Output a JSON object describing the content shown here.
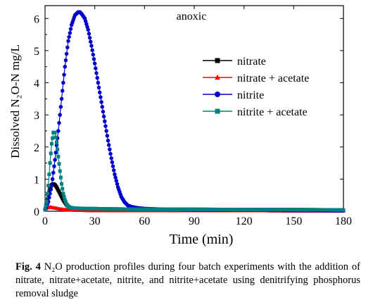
{
  "chart_data": {
    "type": "scatter",
    "annotation": "anoxic",
    "xlabel": "Time (min)",
    "ylabel": "Dissolved N₂O-N mg/L",
    "xlim": [
      0,
      180
    ],
    "ylim": [
      0,
      6.4
    ],
    "xticks": [
      0,
      30,
      60,
      90,
      120,
      150,
      180
    ],
    "yticks": [
      0,
      1,
      2,
      3,
      4,
      5,
      6
    ],
    "legend_position": "right",
    "series": [
      {
        "name": "nitrate",
        "color": "#000000",
        "marker": "square",
        "x": [
          0,
          1,
          2,
          3,
          4,
          5,
          6,
          7,
          8,
          9,
          10,
          11,
          12,
          13,
          14,
          15,
          17,
          20,
          25,
          30,
          40,
          60,
          90,
          120,
          150,
          180
        ],
        "y": [
          0.05,
          0.25,
          0.5,
          0.72,
          0.82,
          0.85,
          0.82,
          0.75,
          0.65,
          0.55,
          0.45,
          0.35,
          0.27,
          0.2,
          0.15,
          0.11,
          0.08,
          0.06,
          0.05,
          0.05,
          0.05,
          0.05,
          0.04,
          0.04,
          0.03,
          0.03
        ]
      },
      {
        "name": "nitrate + acetate",
        "color": "#ff0000",
        "marker": "triangle",
        "x": [
          0,
          1,
          2,
          3,
          4,
          5,
          6,
          8,
          10,
          12,
          15,
          20,
          30,
          60,
          90,
          120,
          150,
          180
        ],
        "y": [
          0.05,
          0.1,
          0.12,
          0.13,
          0.12,
          0.11,
          0.1,
          0.08,
          0.06,
          0.05,
          0.04,
          0.03,
          0.02,
          0.02,
          0.02,
          0.02,
          0.01,
          0.01
        ]
      },
      {
        "name": "nitrite",
        "color": "#0000cc",
        "marker": "circle",
        "x": [
          0,
          2,
          4,
          6,
          8,
          10,
          12,
          14,
          16,
          18,
          20,
          21,
          22,
          24,
          26,
          28,
          30,
          32,
          34,
          36,
          38,
          40,
          42,
          44,
          46,
          48,
          50,
          52,
          54,
          56,
          60,
          70,
          90,
          120,
          150,
          180
        ],
        "y": [
          0.05,
          0.3,
          0.8,
          1.6,
          2.5,
          3.5,
          4.5,
          5.3,
          5.8,
          6.1,
          6.2,
          6.2,
          6.15,
          6.0,
          5.65,
          5.15,
          4.6,
          4.0,
          3.4,
          2.8,
          2.2,
          1.65,
          1.15,
          0.75,
          0.45,
          0.28,
          0.18,
          0.14,
          0.12,
          0.1,
          0.08,
          0.06,
          0.05,
          0.04,
          0.03,
          0.02
        ]
      },
      {
        "name": "nitrite + acetate",
        "color": "#008080",
        "marker": "square",
        "x": [
          0,
          1,
          2,
          3,
          4,
          5,
          6,
          7,
          8,
          9,
          10,
          11,
          12,
          13,
          14,
          15,
          17,
          20,
          25,
          30,
          40,
          60,
          90,
          120,
          150,
          180
        ],
        "y": [
          0.05,
          0.3,
          0.8,
          1.5,
          2.1,
          2.45,
          2.45,
          2.15,
          1.7,
          1.25,
          0.85,
          0.55,
          0.35,
          0.22,
          0.15,
          0.12,
          0.1,
          0.09,
          0.08,
          0.08,
          0.07,
          0.06,
          0.06,
          0.05,
          0.05,
          0.04
        ]
      }
    ]
  },
  "caption": {
    "label": "Fig. 4",
    "text": "N₂O production profiles during four batch experiments with the addition of nitrate, nitrate+acetate, nitrite, and nitrite+acetate using denitrifying phosphorus removal sludge"
  }
}
